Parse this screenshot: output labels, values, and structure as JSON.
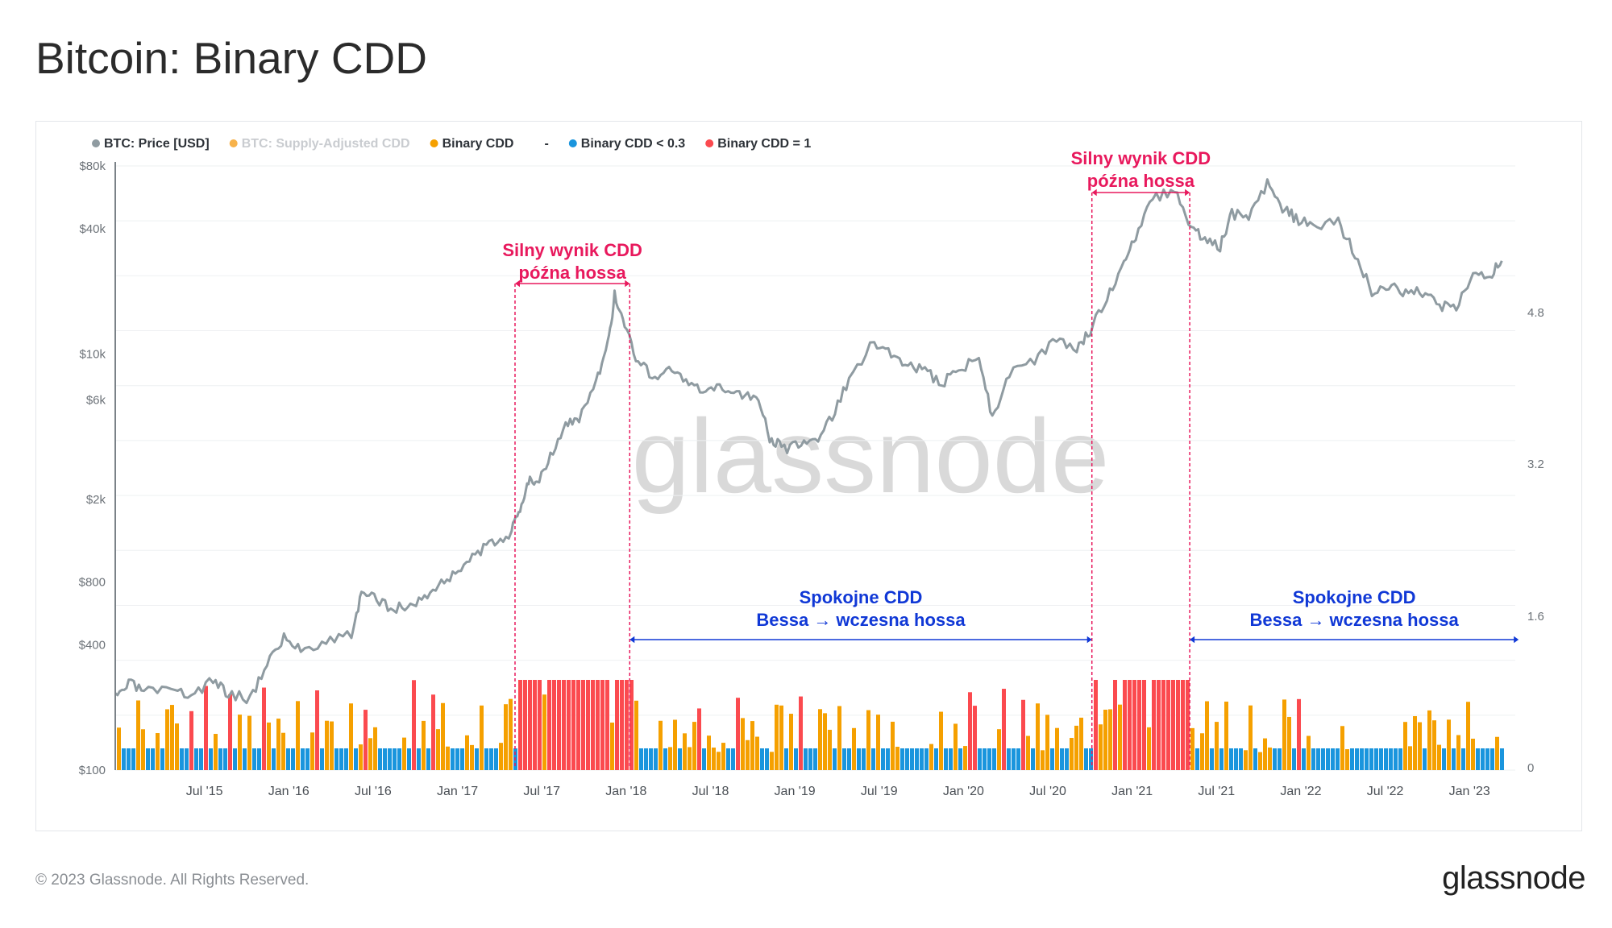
{
  "title": "Bitcoin: Binary CDD",
  "footer": {
    "copyright": "© 2023 Glassnode. All Rights Reserved.",
    "logo": "glassnode"
  },
  "watermark": "glassnode",
  "colors": {
    "price": "#8f9ba1",
    "supply_adjusted": "#f7b24a",
    "binary_cdd": "#f5a000",
    "binary_low": "#1a95dd",
    "binary_one": "#fb4a4f",
    "annotation_red": "#e8195d",
    "annotation_blue": "#1038d6"
  },
  "chart_data": {
    "type": "line",
    "title": "Bitcoin: Binary CDD",
    "legend": [
      {
        "label": "BTC: Price [USD]",
        "color": "#8f9ba1",
        "muted": false
      },
      {
        "label": "BTC: Supply-Adjusted CDD",
        "color": "#f7b24a",
        "muted": true
      },
      {
        "label": "Binary CDD",
        "color": "#f5a000",
        "muted": false
      },
      {
        "label": "-",
        "color": "",
        "muted": false
      },
      {
        "label": "Binary CDD < 0.3",
        "color": "#1a95dd",
        "muted": false
      },
      {
        "label": "Binary CDD = 1",
        "color": "#fb4a4f",
        "muted": false
      }
    ],
    "x_axis": {
      "type": "time",
      "range": [
        2015.0,
        2023.3
      ],
      "ticks": [
        {
          "label": "Jul '15",
          "value": 2015.5
        },
        {
          "label": "Jan '16",
          "value": 2016.0
        },
        {
          "label": "Jul '16",
          "value": 2016.5
        },
        {
          "label": "Jan '17",
          "value": 2017.0
        },
        {
          "label": "Jul '17",
          "value": 2017.5
        },
        {
          "label": "Jan '18",
          "value": 2018.0
        },
        {
          "label": "Jul '18",
          "value": 2018.5
        },
        {
          "label": "Jan '19",
          "value": 2019.0
        },
        {
          "label": "Jul '19",
          "value": 2019.5
        },
        {
          "label": "Jan '20",
          "value": 2020.0
        },
        {
          "label": "Jul '20",
          "value": 2020.5
        },
        {
          "label": "Jan '21",
          "value": 2021.0
        },
        {
          "label": "Jul '21",
          "value": 2021.5
        },
        {
          "label": "Jan '22",
          "value": 2022.0
        },
        {
          "label": "Jul '22",
          "value": 2022.5
        },
        {
          "label": "Jan '23",
          "value": 2023.0
        }
      ]
    },
    "y_left": {
      "scale": "log",
      "range": [
        100,
        80000
      ],
      "ticks": [
        {
          "label": "$80k",
          "value": 80000
        },
        {
          "label": "$40k",
          "value": 40000
        },
        {
          "label": "$10k",
          "value": 10000
        },
        {
          "label": "$6k",
          "value": 6000
        },
        {
          "label": "$2k",
          "value": 2000
        },
        {
          "label": "$800",
          "value": 800
        },
        {
          "label": "$400",
          "value": 400
        },
        {
          "label": "$100",
          "value": 100
        }
      ]
    },
    "y_right": {
      "scale": "linear",
      "ticks": [
        {
          "label": "4.8",
          "value": 4.8
        },
        {
          "label": "3.2",
          "value": 3.2
        },
        {
          "label": "1.6",
          "value": 1.6
        },
        {
          "label": "0",
          "value": 0
        }
      ]
    },
    "price_series": {
      "name": "BTC: Price [USD]",
      "points": [
        [
          2015.0,
          220
        ],
        [
          2015.08,
          260
        ],
        [
          2015.17,
          240
        ],
        [
          2015.33,
          235
        ],
        [
          2015.45,
          230
        ],
        [
          2015.58,
          270
        ],
        [
          2015.67,
          235
        ],
        [
          2015.8,
          220
        ],
        [
          2015.9,
          330
        ],
        [
          2016.0,
          430
        ],
        [
          2016.1,
          380
        ],
        [
          2016.25,
          420
        ],
        [
          2016.4,
          450
        ],
        [
          2016.46,
          700
        ],
        [
          2016.55,
          660
        ],
        [
          2016.65,
          600
        ],
        [
          2016.75,
          610
        ],
        [
          2016.85,
          700
        ],
        [
          2016.95,
          800
        ],
        [
          2017.05,
          950
        ],
        [
          2017.15,
          1100
        ],
        [
          2017.25,
          1250
        ],
        [
          2017.35,
          1400
        ],
        [
          2017.4,
          1800
        ],
        [
          2017.45,
          2500
        ],
        [
          2017.5,
          2400
        ],
        [
          2017.58,
          3300
        ],
        [
          2017.67,
          4500
        ],
        [
          2017.75,
          4900
        ],
        [
          2017.85,
          7200
        ],
        [
          2017.92,
          11000
        ],
        [
          2017.96,
          19000
        ],
        [
          2018.02,
          14000
        ],
        [
          2018.1,
          9000
        ],
        [
          2018.2,
          7800
        ],
        [
          2018.3,
          8500
        ],
        [
          2018.4,
          7000
        ],
        [
          2018.5,
          6500
        ],
        [
          2018.6,
          6800
        ],
        [
          2018.7,
          6500
        ],
        [
          2018.8,
          6300
        ],
        [
          2018.88,
          4000
        ],
        [
          2018.95,
          3500
        ],
        [
          2019.05,
          3600
        ],
        [
          2019.15,
          3800
        ],
        [
          2019.25,
          5000
        ],
        [
          2019.35,
          7500
        ],
        [
          2019.5,
          11500
        ],
        [
          2019.6,
          10000
        ],
        [
          2019.7,
          9000
        ],
        [
          2019.8,
          8200
        ],
        [
          2019.9,
          7200
        ],
        [
          2020.0,
          8500
        ],
        [
          2020.12,
          9500
        ],
        [
          2020.2,
          5000
        ],
        [
          2020.3,
          8000
        ],
        [
          2020.45,
          9300
        ],
        [
          2020.58,
          11500
        ],
        [
          2020.7,
          10800
        ],
        [
          2020.78,
          13000
        ],
        [
          2020.88,
          18000
        ],
        [
          2020.98,
          29000
        ],
        [
          2021.05,
          35000
        ],
        [
          2021.15,
          57000
        ],
        [
          2021.28,
          60000
        ],
        [
          2021.38,
          40000
        ],
        [
          2021.46,
          35000
        ],
        [
          2021.55,
          33000
        ],
        [
          2021.62,
          47000
        ],
        [
          2021.72,
          45000
        ],
        [
          2021.83,
          66000
        ],
        [
          2021.92,
          50000
        ],
        [
          2022.0,
          45000
        ],
        [
          2022.1,
          40000
        ],
        [
          2022.25,
          43000
        ],
        [
          2022.35,
          30000
        ],
        [
          2022.45,
          20000
        ],
        [
          2022.55,
          21000
        ],
        [
          2022.65,
          20000
        ],
        [
          2022.75,
          19500
        ],
        [
          2022.85,
          17000
        ],
        [
          2022.95,
          16800
        ],
        [
          2023.05,
          23000
        ],
        [
          2023.15,
          24000
        ],
        [
          2023.22,
          28000
        ]
      ]
    },
    "binary_cdd_series": {
      "name": "Binary CDD",
      "description": "Daily binary signal bars drawn at the chart base: blue for Binary CDD < 0.3, orange for Binary CDD, red for Binary CDD = 1; dense red blocks during mid-2017 to Jan 2018 and late 2020 to mid 2021"
    },
    "red_intervals": [
      [
        2017.37,
        2018.05
      ],
      [
        2020.79,
        2021.37
      ]
    ],
    "annotations": [
      {
        "id": "strong-2017",
        "lines": [
          "Silny wynik CDD",
          "późna hossa"
        ],
        "color": "#e8195d",
        "x_start": 2017.37,
        "x_end": 2018.05
      },
      {
        "id": "strong-2021",
        "lines": [
          "Silny wynik CDD",
          "późna hossa"
        ],
        "color": "#e8195d",
        "x_start": 2020.79,
        "x_end": 2021.37
      },
      {
        "id": "calm-2018",
        "lines": [
          "Spokojne CDD",
          "Bessa → wczesna hossa"
        ],
        "color": "#1038d6",
        "x_start": 2018.05,
        "x_end": 2020.79
      },
      {
        "id": "calm-2021",
        "lines": [
          "Spokojne CDD",
          "Bessa → wczesna hossa"
        ],
        "color": "#1038d6",
        "x_start": 2021.37,
        "x_end": 2023.32
      }
    ]
  }
}
